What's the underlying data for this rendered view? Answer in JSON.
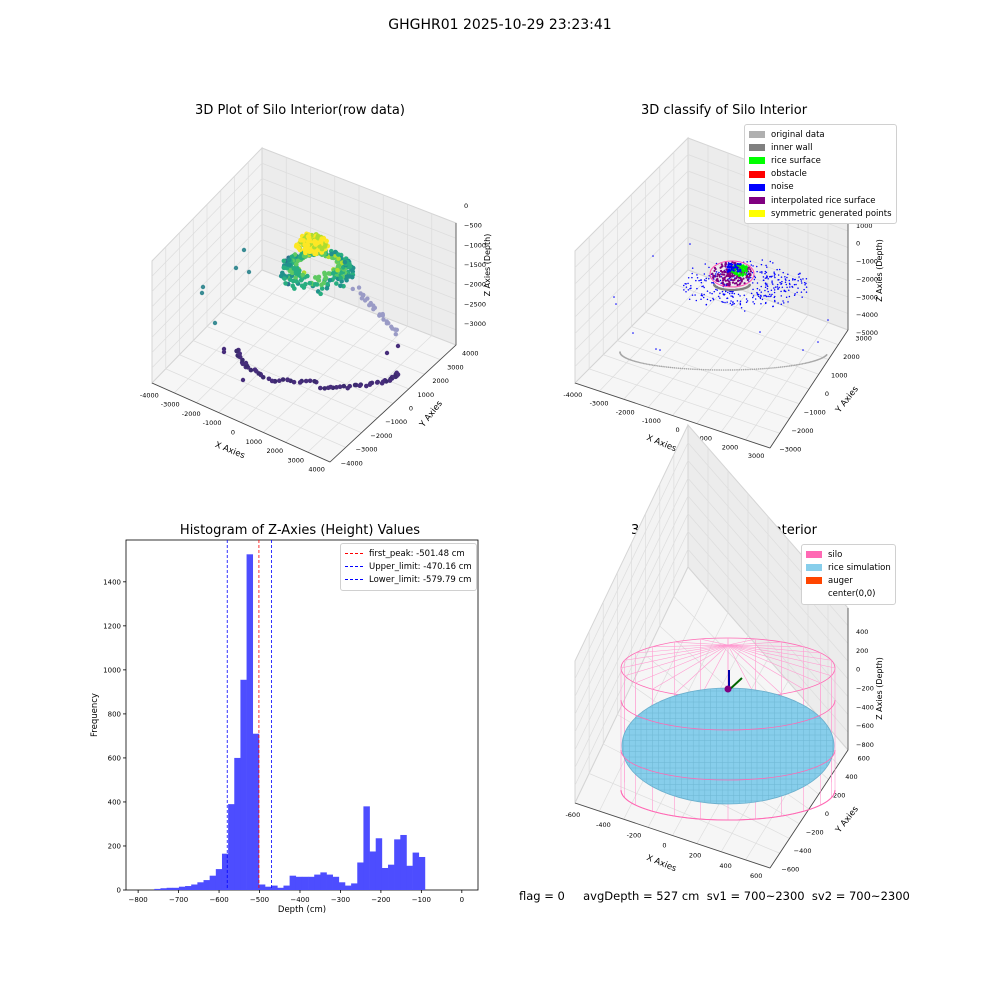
{
  "suptitle": "GHGHR01 2025-10-29 23:23:41",
  "status_line": "flag = 0     avgDepth = 527 cm  sv1 = 700~2300  sv2 = 700~2300",
  "chart_data": [
    {
      "type": "scatter",
      "projection": "3d",
      "title": "3D Plot of Silo Interior(row data)",
      "xlabel": "X Axies",
      "ylabel": "Y Axies",
      "zlabel": "Z Axies (Depth)",
      "x_ticks": [
        "-4000",
        "-3000",
        "-2000",
        "-1000",
        "0",
        "1000",
        "2000",
        "3000",
        "4000"
      ],
      "y_ticks": [
        "4000",
        "3000",
        "2000",
        "1000",
        "0",
        "−1000",
        "−2000",
        "−3000",
        "−4000"
      ],
      "z_ticks": [
        "0",
        "−500",
        "−1000",
        "−1500",
        "−2000",
        "−2500",
        "−3000"
      ],
      "colormap": "viridis",
      "point_groups": [
        {
          "description": "outer ring",
          "z_approx": -3400,
          "radius_approx": 3800
        },
        {
          "description": "rice mound",
          "z_approx": -1700,
          "radius_approx": 1500
        },
        {
          "description": "peak",
          "z_approx": -800,
          "radius_approx": 300
        }
      ]
    },
    {
      "type": "scatter",
      "projection": "3d",
      "title": "3D classify of Silo Interior",
      "xlabel": "X Axies",
      "ylabel": "Y Axies",
      "zlabel": "Z Axies (Depth)",
      "x_ticks": [
        "-4000",
        "-3000",
        "-2000",
        "-1000",
        "0",
        "1000",
        "2000",
        "3000"
      ],
      "y_ticks": [
        "3000",
        "2000",
        "1000",
        "0",
        "−1000",
        "−2000",
        "−3000"
      ],
      "z_ticks": [
        "2000",
        "1000",
        "0",
        "−1000",
        "−2000",
        "−3000",
        "−4000",
        "−5000"
      ],
      "legend": [
        {
          "label": "original data",
          "color": "#b0b0b0"
        },
        {
          "label": "inner wall",
          "color": "#808080"
        },
        {
          "label": "rice surface",
          "color": "#00ff00"
        },
        {
          "label": "obstacle",
          "color": "#ff0000"
        },
        {
          "label": "noise",
          "color": "#0000ff"
        },
        {
          "label": "interpolated rice surface",
          "color": "#800080"
        },
        {
          "label": "symmetric generated points",
          "color": "#ffff00"
        }
      ],
      "legend_position": "top-right"
    },
    {
      "type": "bar",
      "title": "Histogram of Z-Axies (Height) Values",
      "xlabel": "Depth (cm)",
      "ylabel": "Frequency",
      "xlim": [
        -830,
        40
      ],
      "ylim": [
        0,
        1590
      ],
      "x_ticks": [
        "−800",
        "−700",
        "−600",
        "−500",
        "−400",
        "−300",
        "−200",
        "−100",
        "0"
      ],
      "y_ticks": [
        "0",
        "200",
        "400",
        "600",
        "800",
        "1000",
        "1200",
        "1400"
      ],
      "bar_color": "#4d4dff",
      "bin_start": -760,
      "bin_width": 15.2,
      "values": [
        5,
        8,
        10,
        10,
        15,
        18,
        25,
        35,
        45,
        65,
        95,
        165,
        390,
        600,
        955,
        1525,
        710,
        25,
        15,
        20,
        10,
        20,
        65,
        60,
        60,
        60,
        70,
        80,
        70,
        60,
        35,
        20,
        30,
        125,
        380,
        175,
        235,
        100,
        115,
        230,
        250,
        110,
        170,
        150
      ],
      "reference_lines": [
        {
          "label": "first_peak: -501.48 cm",
          "value": -501.48,
          "color": "#ff0000"
        },
        {
          "label": "Upper_limit: -470.16 cm",
          "value": -470.16,
          "color": "#0000ff"
        },
        {
          "label": "Lower_limit: -579.79 cm",
          "value": -579.79,
          "color": "#0000ff"
        }
      ],
      "legend_position": "top-right"
    },
    {
      "type": "surface",
      "projection": "3d",
      "title": "3D simulation of Silo Interior",
      "xlabel": "X Axies",
      "ylabel": "Y Axies",
      "zlabel": "Z Axies (Depth)",
      "x_ticks": [
        "-600",
        "-400",
        "-200",
        "0",
        "200",
        "400",
        "600"
      ],
      "y_ticks": [
        "600",
        "400",
        "200",
        "0",
        "−200",
        "−400",
        "−600"
      ],
      "z_ticks": [
        "400",
        "200",
        "0",
        "−200",
        "−400",
        "−600",
        "−800"
      ],
      "legend": [
        {
          "label": "silo",
          "color": "#ff69b4"
        },
        {
          "label": "rice simulation",
          "color": "#87ceeb"
        },
        {
          "label": "auger",
          "color": "#ff4500"
        },
        {
          "label": "center(0,0)",
          "color": "#ffffff"
        }
      ],
      "legend_position": "top-right"
    }
  ]
}
